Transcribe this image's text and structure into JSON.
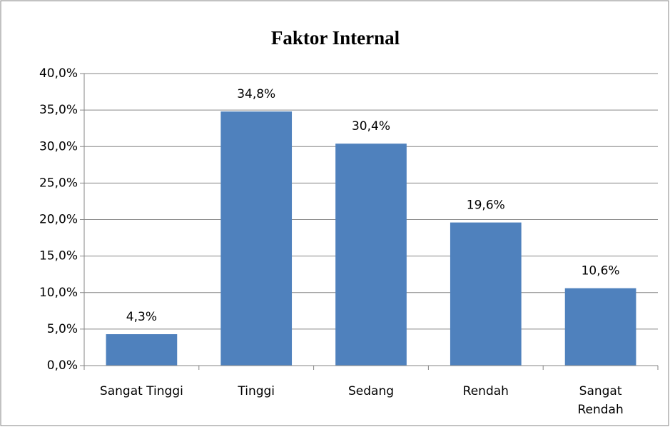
{
  "chart_data": {
    "type": "bar",
    "title": "Faktor Internal",
    "categories": [
      "Sangat Tinggi",
      "Tinggi",
      "Sedang",
      "Rendah",
      "Sangat Rendah"
    ],
    "values": [
      4.3,
      34.8,
      30.4,
      19.6,
      10.6
    ],
    "value_labels": [
      "4,3%",
      "34,8%",
      "30,4%",
      "19,6%",
      "10,6%"
    ],
    "color": "#4f81bd",
    "ylim": [
      0,
      40
    ],
    "yticks": [
      {
        "value": 0,
        "label": "0,0%"
      },
      {
        "value": 5,
        "label": "5,0%"
      },
      {
        "value": 10,
        "label": "10,0%"
      },
      {
        "value": 15,
        "label": "15,0%"
      },
      {
        "value": 20,
        "label": "20,0%"
      },
      {
        "value": 25,
        "label": "25,0%"
      },
      {
        "value": 30,
        "label": "30,0%"
      },
      {
        "value": 35,
        "label": "35,0%"
      },
      {
        "value": 40,
        "label": "40,0%"
      }
    ],
    "grid": true
  }
}
